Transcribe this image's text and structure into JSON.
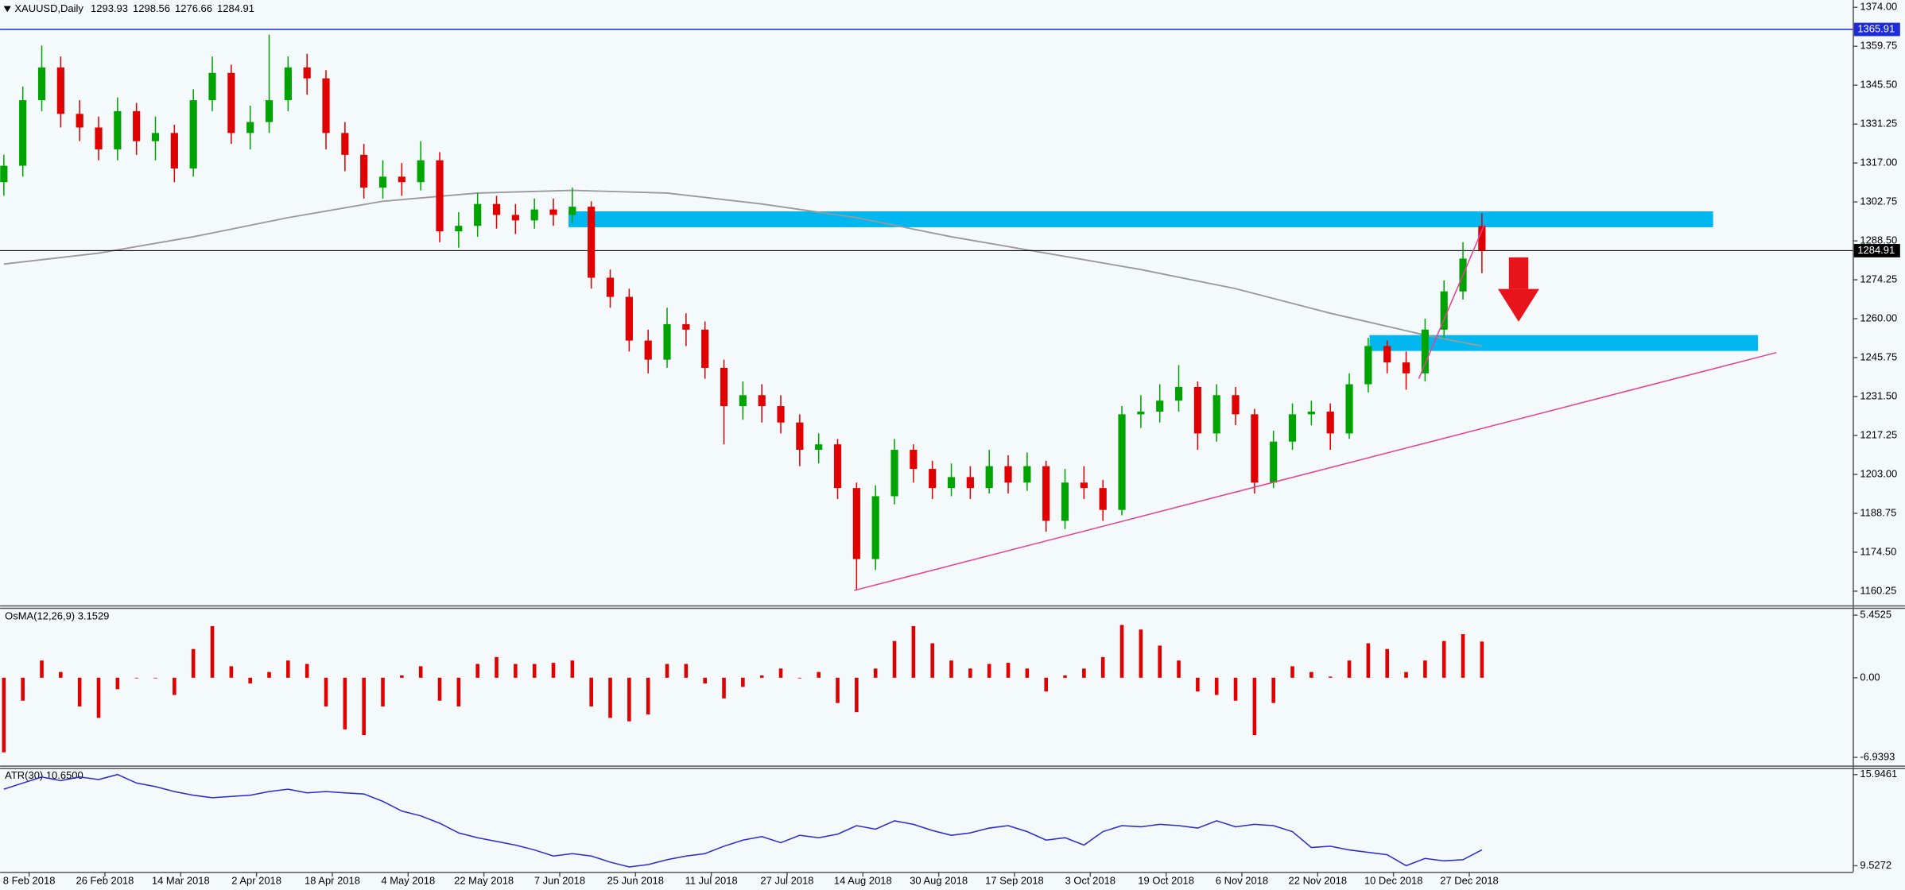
{
  "chart_data": [
    {
      "type": "candlestick",
      "title": "XAUUSD,Daily",
      "x": [
        0,
        3,
        6,
        9,
        12,
        15,
        18,
        21,
        24,
        27,
        30,
        33,
        36,
        39,
        42,
        45,
        48,
        51,
        54,
        57,
        60,
        63,
        66,
        69,
        72,
        75,
        78,
        81,
        84,
        87,
        90,
        93,
        96,
        99,
        102,
        105,
        108,
        111,
        114,
        117,
        120,
        123,
        126,
        129,
        132,
        135,
        138,
        141,
        144,
        147,
        150,
        153,
        156,
        159,
        162,
        165,
        168,
        171,
        174,
        177,
        180,
        183,
        186,
        189,
        192,
        195,
        198,
        201,
        204,
        207,
        210,
        213,
        216,
        219,
        222,
        225,
        228,
        231,
        234
      ],
      "open": [
        1310,
        1316,
        1340,
        1352,
        1335,
        1330,
        1322,
        1336,
        1325,
        1328,
        1315,
        1340,
        1350,
        1328,
        1332,
        1340,
        1352,
        1348,
        1328,
        1320,
        1308,
        1312,
        1310,
        1318,
        1292,
        1294,
        1302,
        1298,
        1296,
        1300,
        1298,
        1301,
        1275,
        1268,
        1252,
        1245,
        1258,
        1256,
        1242,
        1228,
        1232,
        1228,
        1222,
        1212,
        1214,
        1198,
        1172,
        1195,
        1212,
        1205,
        1198,
        1202,
        1198,
        1206,
        1200,
        1206,
        1186,
        1200,
        1198,
        1190,
        1225,
        1226,
        1230,
        1235,
        1218,
        1232,
        1225,
        1200,
        1215,
        1225,
        1226,
        1218,
        1236,
        1250,
        1244,
        1240,
        1256,
        1270,
        1293.93
      ],
      "high": [
        1320,
        1345,
        1360,
        1356,
        1340,
        1334,
        1341,
        1339,
        1334,
        1331,
        1344,
        1356,
        1353,
        1338,
        1364,
        1356,
        1357,
        1351,
        1332,
        1324,
        1318,
        1317,
        1325,
        1321,
        1299,
        1306,
        1305,
        1302,
        1304,
        1304,
        1308,
        1303,
        1278,
        1271,
        1256,
        1264,
        1262,
        1259,
        1245,
        1237,
        1236,
        1232,
        1225,
        1218,
        1216,
        1200,
        1199,
        1216,
        1214,
        1208,
        1207,
        1206,
        1212,
        1210,
        1211,
        1208,
        1205,
        1206,
        1201,
        1228,
        1232,
        1236,
        1243,
        1237,
        1236,
        1235,
        1227,
        1219,
        1229,
        1230,
        1229,
        1240,
        1253,
        1252,
        1248,
        1260,
        1274,
        1288,
        1298.56
      ],
      "low": [
        1305,
        1312,
        1336,
        1330,
        1325,
        1318,
        1318,
        1320,
        1318,
        1310,
        1312,
        1336,
        1324,
        1322,
        1328,
        1336,
        1342,
        1322,
        1314,
        1304,
        1304,
        1305,
        1307,
        1288,
        1286,
        1290,
        1293,
        1291,
        1293,
        1294,
        1295,
        1271,
        1264,
        1248,
        1240,
        1242,
        1250,
        1238,
        1214,
        1223,
        1222,
        1218,
        1206,
        1207,
        1194,
        1160.5,
        1168,
        1192,
        1200,
        1194,
        1195,
        1194,
        1196,
        1196,
        1197,
        1182,
        1183,
        1194,
        1186,
        1188,
        1220,
        1222,
        1226,
        1212,
        1215,
        1221,
        1196,
        1198,
        1212,
        1221,
        1212,
        1216,
        1233,
        1240,
        1234,
        1237,
        1253,
        1267,
        1276.66
      ],
      "close": [
        1316,
        1340,
        1352,
        1335,
        1330,
        1322,
        1336,
        1325,
        1328,
        1315,
        1340,
        1350,
        1328,
        1332,
        1340,
        1352,
        1348,
        1328,
        1320,
        1308,
        1312,
        1310,
        1318,
        1292,
        1294,
        1302,
        1298,
        1296,
        1300,
        1298,
        1301,
        1275,
        1268,
        1252,
        1245,
        1258,
        1256,
        1242,
        1228,
        1232,
        1228,
        1222,
        1212,
        1214,
        1198,
        1172,
        1195,
        1212,
        1205,
        1198,
        1202,
        1198,
        1206,
        1200,
        1206,
        1186,
        1200,
        1198,
        1190,
        1225,
        1226,
        1230,
        1235,
        1218,
        1232,
        1225,
        1200,
        1215,
        1225,
        1226,
        1218,
        1236,
        1250,
        1244,
        1240,
        1256,
        1270,
        1282,
        1284.91
      ],
      "up_color": "#00a400",
      "down_color": "#e00000",
      "xlim": [
        -0.6,
        292.7
      ],
      "xticks": [
        {
          "value": 4,
          "label": "8 Feb 2018"
        },
        {
          "value": 16,
          "label": "26 Feb 2018"
        },
        {
          "value": 28,
          "label": "14 Mar 2018"
        },
        {
          "value": 40,
          "label": "2 Apr 2018"
        },
        {
          "value": 52,
          "label": "18 Apr 2018"
        },
        {
          "value": 64,
          "label": "4 May 2018"
        },
        {
          "value": 76,
          "label": "22 May 2018"
        },
        {
          "value": 88,
          "label": "7 Jun 2018"
        },
        {
          "value": 100,
          "label": "25 Jun 2018"
        },
        {
          "value": 112,
          "label": "11 Jul 2018"
        },
        {
          "value": 124,
          "label": "27 Jul 2018"
        },
        {
          "value": 136,
          "label": "14 Aug 2018"
        },
        {
          "value": 148,
          "label": "30 Aug 2018"
        },
        {
          "value": 160,
          "label": "17 Sep 2018"
        },
        {
          "value": 172,
          "label": "3 Oct 2018"
        },
        {
          "value": 184,
          "label": "19 Oct 2018"
        },
        {
          "value": 196,
          "label": "6 Nov 2018"
        },
        {
          "value": 208,
          "label": "22 Nov 2018"
        },
        {
          "value": 220,
          "label": "10 Dec 2018"
        },
        {
          "value": 232,
          "label": "27 Dec 2018"
        }
      ],
      "ylim": [
        1155.3,
        1375.8
      ],
      "yticks": [
        {
          "value": 1374,
          "label": "1374.00"
        },
        {
          "value": 1359.75,
          "label": "1359.75"
        },
        {
          "value": 1345.5,
          "label": "1345.50"
        },
        {
          "value": 1331.25,
          "label": "1331.25"
        },
        {
          "value": 1317,
          "label": "1317.00"
        },
        {
          "value": 1302.75,
          "label": "1302.75"
        },
        {
          "value": 1288.5,
          "label": "1288.50"
        },
        {
          "value": 1274.25,
          "label": "1274.25"
        },
        {
          "value": 1260,
          "label": "1260.00"
        },
        {
          "value": 1245.75,
          "label": "1245.75"
        },
        {
          "value": 1231.5,
          "label": "1231.50"
        },
        {
          "value": 1217.25,
          "label": "1217.25"
        },
        {
          "value": 1203,
          "label": "1203.00"
        },
        {
          "value": 1188.75,
          "label": "1188.75"
        },
        {
          "value": 1174.5,
          "label": "1174.50"
        },
        {
          "value": 1160.25,
          "label": "1160.25"
        }
      ],
      "moving_average": {
        "color": "#999999",
        "x": [
          0,
          15,
          30,
          45,
          60,
          75,
          90,
          105,
          120,
          135,
          150,
          165,
          180,
          195,
          210,
          225,
          234
        ],
        "values": [
          1280,
          1284,
          1290,
          1297,
          1303,
          1306,
          1307,
          1306,
          1302,
          1297,
          1290,
          1284,
          1278,
          1271,
          1262,
          1254,
          1250
        ]
      },
      "price_lines": [
        {
          "value": 1365.91,
          "color": "#1e2bd8"
        }
      ],
      "current_price_color": "#000000",
      "zones": [
        {
          "x": [
            89.4,
            270.6
          ],
          "y": [
            1293.5,
            1299.3
          ]
        },
        {
          "x": [
            216.2,
            277.7
          ],
          "y": [
            1248.2,
            1254
          ]
        }
      ],
      "zone_color": "#00b7ef",
      "trendlines": [
        {
          "x": [
            134.6,
            280.6
          ],
          "y": [
            1160.5,
            1247.6
          ]
        },
        {
          "x": [
            224,
            234.4
          ],
          "y": [
            1238,
            1294.5
          ]
        }
      ],
      "trendline_color": "#e8408f"
    },
    {
      "type": "histogram",
      "title": "OsMA(12,26,9) 3.1529",
      "x": [
        0,
        3,
        6,
        9,
        12,
        15,
        18,
        21,
        24,
        27,
        30,
        33,
        36,
        39,
        42,
        45,
        48,
        51,
        54,
        57,
        60,
        63,
        66,
        69,
        72,
        75,
        78,
        81,
        84,
        87,
        90,
        93,
        96,
        99,
        102,
        105,
        108,
        111,
        114,
        117,
        120,
        123,
        126,
        129,
        132,
        135,
        138,
        141,
        144,
        147,
        150,
        153,
        156,
        159,
        162,
        165,
        168,
        171,
        174,
        177,
        180,
        183,
        186,
        189,
        192,
        195,
        198,
        201,
        204,
        207,
        210,
        213,
        216,
        219,
        222,
        225,
        228,
        231,
        234
      ],
      "values": [
        -6.5,
        -2,
        1.5,
        0.5,
        -2.5,
        -3.5,
        -1,
        0,
        0,
        -1.5,
        2.5,
        4.5,
        1,
        -0.5,
        0.5,
        1.5,
        1.2,
        -2.5,
        -4.5,
        -5,
        -2.5,
        0.2,
        1,
        -2,
        -2.5,
        1.2,
        1.8,
        1.2,
        1.2,
        1.3,
        1.5,
        -2.5,
        -3.5,
        -3.8,
        -3.2,
        1.2,
        1.2,
        -0.5,
        -1.8,
        -0.8,
        0.2,
        0.8,
        0,
        0.5,
        -2.2,
        -3,
        0.8,
        3.2,
        4.5,
        3,
        1.5,
        0.8,
        1.2,
        1.3,
        0.8,
        -1.2,
        0.2,
        0.8,
        1.8,
        4.6,
        4.2,
        2.8,
        1.5,
        -1.2,
        -1.5,
        -2,
        -5,
        -2.2,
        1,
        0.5,
        0.1,
        1.5,
        3,
        2.5,
        0.5,
        1.5,
        3.2,
        3.8,
        3.1529
      ],
      "color": "#e00000",
      "ylim": [
        -7.6,
        6.05
      ],
      "yticks": [
        5.4525,
        {
          "value": 0,
          "label": "0.00"
        },
        -6.9393
      ]
    },
    {
      "type": "line",
      "title": "ATR(30) 10.6500",
      "x": [
        0,
        3,
        6,
        9,
        12,
        15,
        18,
        21,
        24,
        27,
        30,
        33,
        36,
        39,
        42,
        45,
        48,
        51,
        54,
        57,
        60,
        63,
        66,
        69,
        72,
        75,
        78,
        81,
        84,
        87,
        90,
        93,
        96,
        99,
        102,
        105,
        108,
        111,
        114,
        117,
        120,
        123,
        126,
        129,
        132,
        135,
        138,
        141,
        144,
        147,
        150,
        153,
        156,
        159,
        162,
        165,
        168,
        171,
        174,
        177,
        180,
        183,
        186,
        189,
        192,
        195,
        198,
        201,
        204,
        207,
        210,
        213,
        216,
        219,
        222,
        225,
        228,
        231,
        234
      ],
      "values": [
        14.92,
        15.35,
        15.78,
        15.52,
        15.78,
        15.6,
        15.95,
        15.35,
        15.1,
        14.75,
        14.49,
        14.32,
        14.41,
        14.49,
        14.75,
        14.92,
        14.66,
        14.75,
        14.66,
        14.58,
        14.06,
        13.38,
        13.04,
        12.52,
        11.84,
        11.5,
        11.24,
        10.98,
        10.64,
        10.21,
        10.38,
        10.21,
        9.78,
        9.44,
        9.61,
        9.95,
        10.21,
        10.38,
        10.9,
        11.33,
        11.58,
        11.15,
        11.67,
        11.5,
        11.75,
        12.35,
        12.1,
        12.69,
        12.44,
        12.01,
        11.67,
        11.84,
        12.18,
        12.35,
        11.93,
        11.33,
        11.5,
        10.98,
        11.93,
        12.35,
        12.27,
        12.44,
        12.35,
        12.18,
        12.69,
        12.27,
        12.44,
        12.35,
        11.93,
        10.81,
        10.9,
        10.64,
        10.47,
        10.3,
        9.53,
        10.04,
        9.87,
        9.95,
        10.65
      ],
      "color": "#2a2ad0",
      "ylim": [
        9.1,
        16.37
      ],
      "yticks": [
        15.9461,
        9.5272
      ]
    }
  ]
}
